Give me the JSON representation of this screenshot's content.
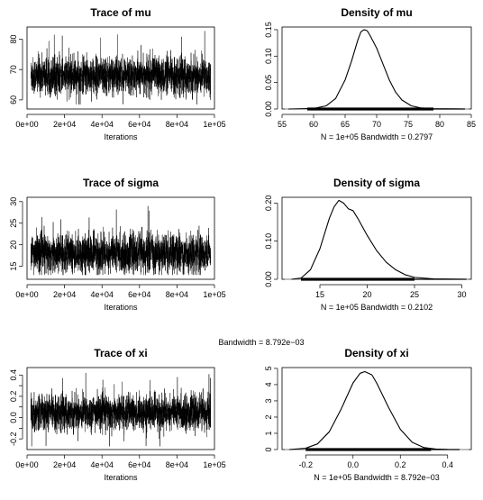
{
  "stray_label": "Bandwidth = 8.792e−03",
  "chart_data": [
    {
      "type": "line",
      "title": "Trace of mu",
      "xlabel": "Iterations",
      "xlim": [
        0,
        100000
      ],
      "ylim": [
        57,
        84
      ],
      "x_ticks": [
        0,
        20000,
        40000,
        60000,
        80000,
        100000
      ],
      "x_tick_labels": [
        "0e+00",
        "2e+04",
        "4e+04",
        "6e+04",
        "8e+04",
        "1e+05"
      ],
      "y_ticks": [
        60,
        70,
        80
      ],
      "y_tick_labels": [
        "60",
        "70",
        "80"
      ],
      "trace": {
        "center": 68,
        "sd": 3.0,
        "min": 58.5,
        "max": 83.5,
        "band_low": 61,
        "band_high": 76
      }
    },
    {
      "type": "line",
      "title": "Density of mu",
      "xlabel": "N = 1e+05   Bandwidth = 0.2797",
      "xlim": [
        55,
        85
      ],
      "ylim": [
        0,
        0.155
      ],
      "x_ticks": [
        55,
        60,
        65,
        70,
        75,
        80,
        85
      ],
      "x_tick_labels": [
        "55",
        "60",
        "65",
        "70",
        "75",
        "80",
        "85"
      ],
      "y_ticks": [
        0,
        0.05,
        0.1,
        0.15
      ],
      "y_tick_labels": [
        "0.00",
        "0.05",
        "0.10",
        "0.15"
      ],
      "series": [
        {
          "x": [
            56,
            60,
            62,
            63.5,
            65,
            66,
            67,
            67.5,
            68,
            68.5,
            69,
            70,
            71,
            72,
            73,
            74,
            75.5,
            77,
            79,
            84
          ],
          "values": [
            0,
            0.001,
            0.006,
            0.02,
            0.055,
            0.09,
            0.13,
            0.146,
            0.15,
            0.148,
            0.138,
            0.115,
            0.085,
            0.055,
            0.032,
            0.017,
            0.006,
            0.002,
            0.0005,
            0
          ]
        }
      ],
      "rug": {
        "dense_from": 59,
        "dense_to": 79,
        "sparse_to": 84
      }
    },
    {
      "type": "line",
      "title": "Trace of sigma",
      "xlabel": "Iterations",
      "xlim": [
        0,
        100000
      ],
      "ylim": [
        12,
        31
      ],
      "x_ticks": [
        0,
        20000,
        40000,
        60000,
        80000,
        100000
      ],
      "x_tick_labels": [
        "0e+00",
        "2e+04",
        "4e+04",
        "6e+04",
        "8e+04",
        "1e+05"
      ],
      "y_ticks": [
        15,
        20,
        25,
        30
      ],
      "y_tick_labels": [
        "15",
        "20",
        "25",
        "30"
      ],
      "trace": {
        "center": 18,
        "sd": 2.2,
        "min": 13,
        "max": 30,
        "band_low": 14,
        "band_high": 24
      }
    },
    {
      "type": "line",
      "title": "Density of sigma",
      "xlabel": "N = 1e+05   Bandwidth = 0.2102",
      "xlim": [
        11,
        31
      ],
      "ylim": [
        0,
        0.215
      ],
      "x_ticks": [
        15,
        20,
        25,
        30
      ],
      "x_tick_labels": [
        "15",
        "20",
        "25",
        "30"
      ],
      "y_ticks": [
        0,
        0.1,
        0.2
      ],
      "y_tick_labels": [
        "0.00",
        "0.10",
        "0.20"
      ],
      "series": [
        {
          "x": [
            12,
            13,
            14,
            15,
            16,
            16.5,
            17,
            17.5,
            18,
            18.5,
            19,
            20,
            21,
            22,
            23,
            24,
            25,
            27,
            30.5
          ],
          "values": [
            0,
            0.003,
            0.025,
            0.08,
            0.16,
            0.19,
            0.207,
            0.2,
            0.185,
            0.18,
            0.16,
            0.115,
            0.075,
            0.045,
            0.025,
            0.012,
            0.005,
            0.001,
            0
          ]
        }
      ],
      "rug": {
        "dense_from": 13,
        "dense_to": 25,
        "sparse_to": 30.5
      }
    },
    {
      "type": "line",
      "title": "Trace of xi",
      "xlabel": "Iterations",
      "xlim": [
        0,
        100000
      ],
      "ylim": [
        -0.3,
        0.47
      ],
      "x_ticks": [
        0,
        20000,
        40000,
        60000,
        80000,
        100000
      ],
      "x_tick_labels": [
        "0e+00",
        "2e+04",
        "4e+04",
        "6e+04",
        "8e+04",
        "1e+05"
      ],
      "y_ticks": [
        -0.2,
        0,
        0.2,
        0.4
      ],
      "y_tick_labels": [
        "-0.2",
        "0.0",
        "0.2",
        "0.4"
      ],
      "y_minor_ticks": [
        -0.1,
        0.1,
        0.3
      ],
      "y_minor_tick_labels": [
        "",
        "",
        ""
      ],
      "trace": {
        "center": 0.05,
        "sd": 0.08,
        "min": -0.27,
        "max": 0.44,
        "band_low": -0.15,
        "band_high": 0.3
      }
    },
    {
      "type": "line",
      "title": "Density of xi",
      "xlabel": "N = 1e+05   Bandwidth = 8.792e−03",
      "xlim": [
        -0.3,
        0.5
      ],
      "ylim": [
        0,
        5.05
      ],
      "x_ticks": [
        -0.2,
        0,
        0.2,
        0.4
      ],
      "x_tick_labels": [
        "-0.2",
        "0.0",
        "0.2",
        "0.4"
      ],
      "y_ticks": [
        0,
        1,
        2,
        3,
        4,
        5
      ],
      "y_tick_labels": [
        "0",
        "1",
        "2",
        "3",
        "4",
        "5"
      ],
      "series": [
        {
          "x": [
            -0.27,
            -0.2,
            -0.15,
            -0.1,
            -0.05,
            0,
            0.03,
            0.05,
            0.08,
            0.1,
            0.15,
            0.2,
            0.25,
            0.3,
            0.35,
            0.4,
            0.45
          ],
          "values": [
            0,
            0.08,
            0.35,
            1.1,
            2.5,
            4.1,
            4.7,
            4.8,
            4.6,
            4.1,
            2.6,
            1.25,
            0.45,
            0.12,
            0.03,
            0.005,
            0
          ]
        }
      ],
      "rug": {
        "dense_from": -0.2,
        "dense_to": 0.33,
        "sparse_to": 0.45
      }
    }
  ]
}
